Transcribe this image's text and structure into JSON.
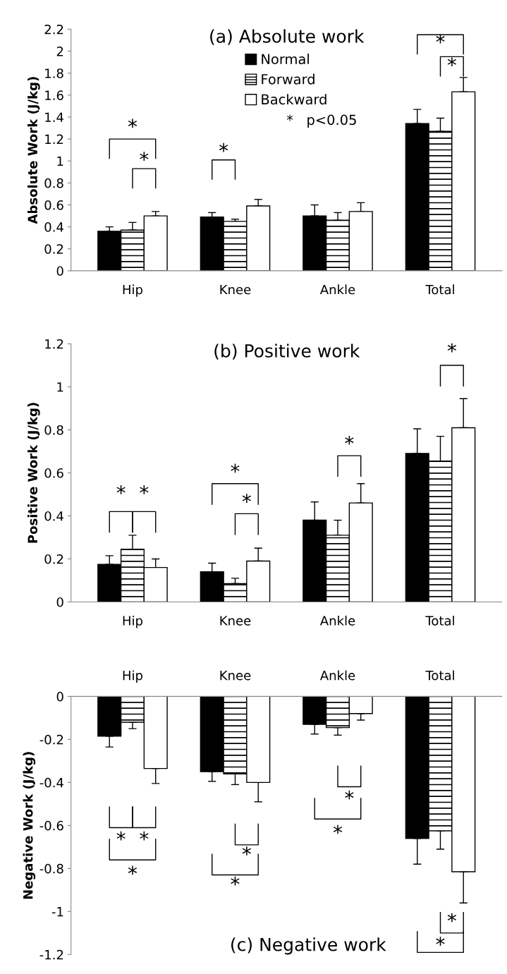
{
  "chart_data": [
    {
      "type": "bar",
      "title": "(a) Absolute work",
      "ylabel": "Absolute Work (J/kg)",
      "categories": [
        "Hip",
        "Knee",
        "Ankle",
        "Total"
      ],
      "series": [
        {
          "name": "Normal",
          "color": "#000000",
          "values": [
            0.36,
            0.49,
            0.5,
            1.34
          ],
          "errors": [
            [
              0.36,
              0.4
            ],
            [
              0.49,
              0.53
            ],
            [
              0.5,
              0.6
            ],
            [
              1.34,
              1.47
            ]
          ]
        },
        {
          "name": "Forward",
          "color": "#ffffff",
          "values": [
            0.37,
            0.45,
            0.46,
            1.27
          ],
          "errors": [
            [
              0.37,
              0.44
            ],
            [
              0.45,
              0.47
            ],
            [
              0.46,
              0.53
            ],
            [
              1.27,
              1.39
            ]
          ]
        },
        {
          "name": "Backward",
          "color": "#ffffff",
          "values": [
            0.5,
            0.59,
            0.54,
            1.63
          ],
          "errors": [
            [
              0.5,
              0.54
            ],
            [
              0.59,
              0.65
            ],
            [
              0.54,
              0.62
            ],
            [
              1.63,
              1.76
            ]
          ]
        }
      ],
      "ylim": [
        0,
        2.2
      ],
      "yticks": [
        0,
        0.2,
        0.4,
        0.6,
        0.8,
        1,
        1.2,
        1.4,
        1.6,
        1.8,
        2,
        2.2
      ],
      "legend": "top",
      "grid": false,
      "annotations": [
        "*   p<0.05",
        "*",
        "*",
        "*",
        "*",
        "*"
      ]
    },
    {
      "type": "bar",
      "title": "(b) Positive work",
      "ylabel": "Positive Work (J/kg)",
      "categories": [
        "Hip",
        "Knee",
        "Ankle",
        "Total"
      ],
      "series": [
        {
          "color": "#000000",
          "values": [
            0.175,
            0.14,
            0.38,
            0.69
          ],
          "errors": [
            [
              0.175,
              0.215
            ],
            [
              0.14,
              0.18
            ],
            [
              0.38,
              0.465
            ],
            [
              0.69,
              0.805
            ]
          ]
        },
        {
          "color": "#ffffff",
          "values": [
            0.245,
            0.085,
            0.31,
            0.655
          ],
          "errors": [
            [
              0.245,
              0.31
            ],
            [
              0.085,
              0.11
            ],
            [
              0.31,
              0.38
            ],
            [
              0.655,
              0.77
            ]
          ]
        },
        {
          "color": "#ffffff",
          "values": [
            0.16,
            0.19,
            0.46,
            0.81
          ],
          "errors": [
            [
              0.16,
              0.2
            ],
            [
              0.19,
              0.25
            ],
            [
              0.46,
              0.55
            ],
            [
              0.81,
              0.945
            ]
          ]
        }
      ],
      "ylim": [
        0,
        1.2
      ],
      "yticks": [
        0,
        0.2,
        0.4,
        0.6,
        0.8,
        1,
        1.2
      ],
      "grid": false,
      "annotations": [
        "*",
        "*",
        "*",
        "*",
        "*",
        "*"
      ]
    },
    {
      "type": "bar",
      "title": "(c) Negative work",
      "ylabel": "Negative Work (J/kg)",
      "categories": [
        "Hip",
        "Knee",
        "Ankle",
        "Total"
      ],
      "series": [
        {
          "color": "#000000",
          "values": [
            -0.185,
            -0.35,
            -0.13,
            -0.66
          ],
          "errors": [
            [
              -0.235,
              -0.185
            ],
            [
              -0.395,
              -0.35
            ],
            [
              -0.175,
              -0.13
            ],
            [
              -0.78,
              -0.66
            ]
          ]
        },
        {
          "color": "#ffffff",
          "values": [
            -0.12,
            -0.36,
            -0.145,
            -0.625
          ],
          "errors": [
            [
              -0.15,
              -0.12
            ],
            [
              -0.41,
              -0.36
            ],
            [
              -0.18,
              -0.145
            ],
            [
              -0.71,
              -0.625
            ]
          ]
        },
        {
          "color": "#ffffff",
          "values": [
            -0.335,
            -0.4,
            -0.08,
            -0.815
          ],
          "errors": [
            [
              -0.405,
              -0.335
            ],
            [
              -0.49,
              -0.4
            ],
            [
              -0.11,
              -0.08
            ],
            [
              -0.96,
              -0.815
            ]
          ]
        }
      ],
      "ylim": [
        -1.2,
        0
      ],
      "yticks": [
        -1.2,
        -1,
        -0.8,
        -0.6,
        -0.4,
        -0.2,
        0
      ],
      "grid": false,
      "annotations": [
        "*",
        "*",
        "*",
        "*",
        "*",
        "*",
        "*",
        "*",
        "*"
      ]
    }
  ]
}
